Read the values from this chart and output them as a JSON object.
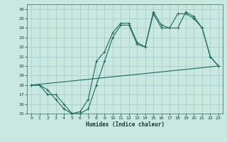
{
  "title": "",
  "xlabel": "Humidex (Indice chaleur)",
  "bg_color": "#c8e8e0",
  "grid_color": "#aacccc",
  "line_color": "#1a6b5a",
  "xlim": [
    -0.5,
    23.5
  ],
  "ylim": [
    15,
    26.5
  ],
  "xticks": [
    0,
    1,
    2,
    3,
    4,
    5,
    6,
    7,
    8,
    9,
    10,
    11,
    12,
    13,
    14,
    15,
    16,
    17,
    18,
    19,
    20,
    21,
    22,
    23
  ],
  "yticks": [
    15,
    16,
    17,
    18,
    19,
    20,
    21,
    22,
    23,
    24,
    25,
    26
  ],
  "line1_x": [
    0,
    1,
    2,
    3,
    4,
    5,
    6,
    7,
    8,
    9,
    10,
    11,
    12,
    13,
    14,
    15,
    16,
    17,
    18,
    19,
    20,
    21,
    22,
    23
  ],
  "line1_y": [
    18.0,
    18.0,
    17.5,
    16.5,
    15.5,
    15.0,
    15.2,
    16.5,
    20.5,
    21.5,
    23.5,
    24.5,
    24.5,
    22.5,
    22.0,
    25.5,
    24.0,
    24.0,
    25.5,
    25.5,
    25.0,
    24.0,
    21.0,
    20.0
  ],
  "line2_x": [
    0,
    1,
    2,
    3,
    4,
    5,
    6,
    7,
    8,
    9,
    10,
    11,
    12,
    13,
    14,
    15,
    16,
    17,
    18,
    19,
    20,
    21,
    22,
    23
  ],
  "line2_y": [
    18.0,
    18.0,
    17.0,
    17.0,
    16.0,
    15.0,
    15.0,
    15.5,
    18.0,
    20.5,
    23.0,
    24.3,
    24.3,
    22.3,
    22.0,
    25.7,
    24.3,
    24.0,
    24.0,
    25.7,
    25.2,
    24.0,
    21.0,
    20.0
  ],
  "line3_x": [
    0,
    23
  ],
  "line3_y": [
    18.0,
    20.0
  ]
}
